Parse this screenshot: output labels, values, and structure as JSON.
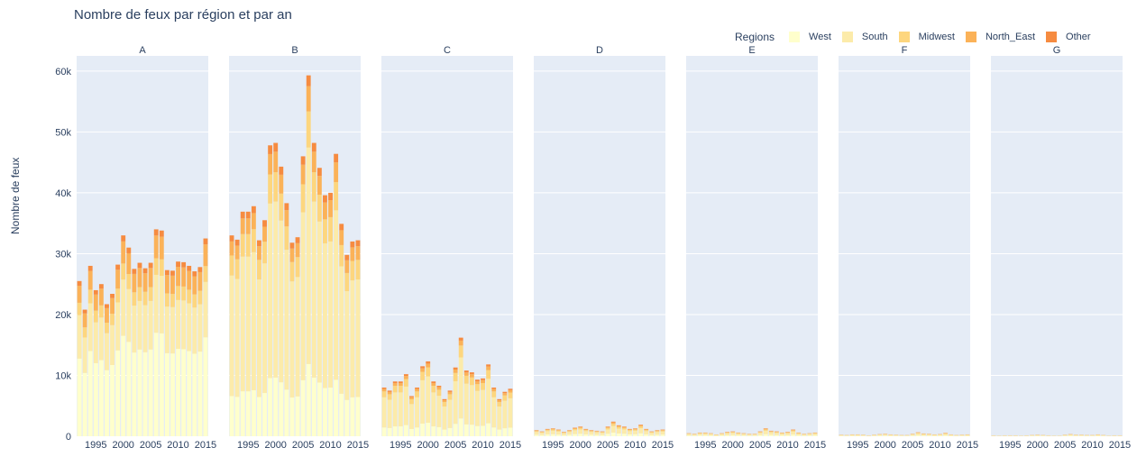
{
  "title": "Nombre de feux par région et par an",
  "legend": {
    "title": "Regions",
    "items": [
      {
        "name": "West",
        "color": "#ffffcc"
      },
      {
        "name": "South",
        "color": "#fcebaa"
      },
      {
        "name": "Midwest",
        "color": "#fdd67e"
      },
      {
        "name": "North_East",
        "color": "#fbb258"
      },
      {
        "name": "Other",
        "color": "#f68b40"
      }
    ]
  },
  "chart_data": {
    "type": "bar",
    "barmode": "stack",
    "title": "Nombre de feux par région et par an",
    "ylabel": "Nombre de feux",
    "xlabel": "",
    "ylim": [
      0,
      62500
    ],
    "yticks": [
      0,
      10000,
      20000,
      30000,
      40000,
      50000,
      60000
    ],
    "ytick_labels": [
      "0",
      "10k",
      "20k",
      "30k",
      "40k",
      "50k",
      "60k"
    ],
    "xticks": [
      1995,
      2000,
      2005,
      2010,
      2015
    ],
    "x": [
      1992,
      1993,
      1994,
      1995,
      1996,
      1997,
      1998,
      1999,
      2000,
      2001,
      2002,
      2003,
      2004,
      2005,
      2006,
      2007,
      2008,
      2009,
      2010,
      2011,
      2012,
      2013,
      2014,
      2015
    ],
    "legend_position": "top-right",
    "grid": true,
    "facets": [
      {
        "label": "A",
        "totals": [
          25500,
          20800,
          28000,
          24000,
          25000,
          21700,
          23400,
          28200,
          33000,
          31000,
          27500,
          28500,
          27600,
          28500,
          34000,
          33800,
          27300,
          27200,
          28700,
          28600,
          28000,
          27100,
          27800,
          32500
        ]
      },
      {
        "label": "B",
        "totals": [
          33000,
          32300,
          36900,
          36900,
          37800,
          32200,
          35500,
          47800,
          48200,
          44300,
          38300,
          31800,
          32700,
          46000,
          59300,
          48200,
          44100,
          39600,
          40000,
          46400,
          34900,
          29800,
          32000,
          32200
        ]
      },
      {
        "label": "C",
        "totals": [
          8000,
          7500,
          9000,
          9000,
          10200,
          6600,
          8000,
          11500,
          12300,
          9000,
          8300,
          6100,
          7500,
          11300,
          16200,
          10800,
          10500,
          9300,
          9500,
          11800,
          8000,
          6100,
          7300,
          7800
        ]
      },
      {
        "label": "D",
        "totals": [
          1000,
          800,
          1200,
          1300,
          1100,
          700,
          1000,
          1400,
          1600,
          1200,
          1000,
          900,
          800,
          1600,
          2400,
          1800,
          1600,
          1200,
          1300,
          1900,
          1200,
          800,
          1000,
          1100
        ]
      },
      {
        "label": "E",
        "totals": [
          500,
          400,
          600,
          600,
          500,
          300,
          500,
          700,
          800,
          600,
          500,
          400,
          400,
          800,
          1300,
          900,
          800,
          600,
          700,
          1100,
          600,
          400,
          500,
          600
        ]
      },
      {
        "label": "F",
        "totals": [
          250,
          200,
          300,
          300,
          250,
          150,
          250,
          350,
          400,
          300,
          250,
          200,
          200,
          400,
          650,
          450,
          400,
          300,
          350,
          550,
          300,
          200,
          250,
          300
        ]
      },
      {
        "label": "G",
        "totals": [
          150,
          100,
          150,
          150,
          150,
          100,
          150,
          200,
          250,
          200,
          150,
          100,
          100,
          250,
          350,
          250,
          250,
          200,
          200,
          300,
          200,
          100,
          150,
          150
        ]
      }
    ]
  }
}
